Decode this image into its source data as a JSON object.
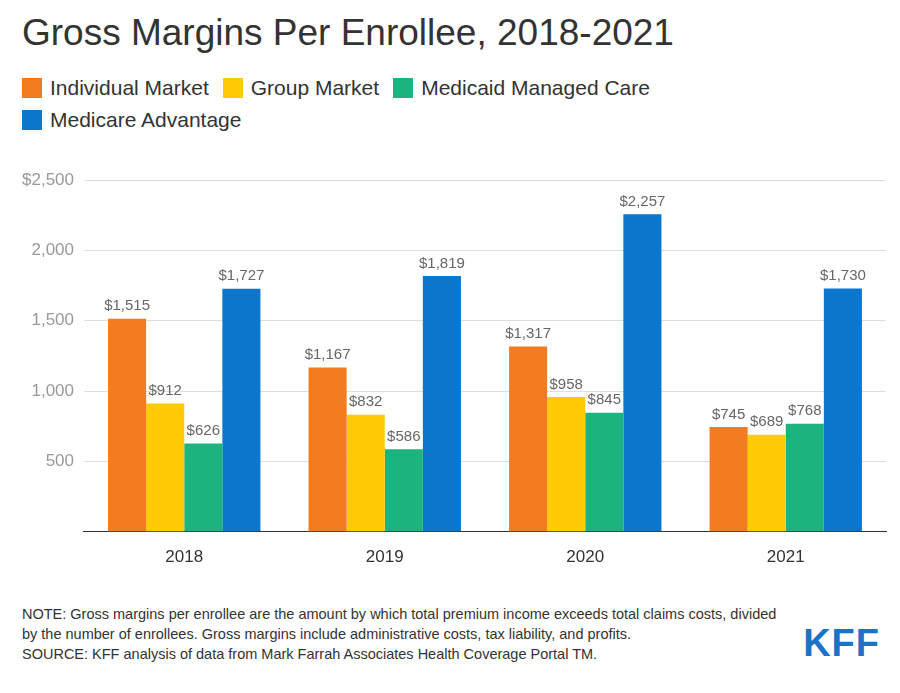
{
  "chart_data": {
    "type": "bar",
    "title": "Gross Margins Per Enrollee, 2018-2021",
    "categories": [
      "2018",
      "2019",
      "2020",
      "2021"
    ],
    "series": [
      {
        "name": "Individual Market",
        "color": "#f47b20",
        "values": [
          1515,
          1167,
          1317,
          745
        ],
        "value_labels": [
          "$1,515",
          "$1,167",
          "$1,317",
          "$745"
        ]
      },
      {
        "name": "Group Market",
        "color": "#ffcb05",
        "values": [
          912,
          832,
          958,
          689
        ],
        "value_labels": [
          "$912",
          "$832",
          "$958",
          "$689"
        ]
      },
      {
        "name": "Medicaid Managed Care",
        "color": "#1db37f",
        "values": [
          626,
          586,
          845,
          768
        ],
        "value_labels": [
          "$626",
          "$586",
          "$845",
          "$768"
        ]
      },
      {
        "name": "Medicare Advantage",
        "color": "#0a77cc",
        "values": [
          1727,
          1819,
          2257,
          1730
        ],
        "value_labels": [
          "$1,727",
          "$1,819",
          "$2,257",
          "$1,730"
        ]
      }
    ],
    "ylim": [
      0,
      2500
    ],
    "yticks": [
      500,
      {
        "value": 1000,
        "label": "1,000"
      },
      {
        "value": 1500,
        "label": "1,500"
      },
      {
        "value": 2000,
        "label": "2,000"
      },
      {
        "value": 2500,
        "label": "$2,500"
      }
    ],
    "grid": true,
    "legend": "top-left",
    "data_labels": true,
    "notes": [
      "NOTE: Gross margins per enrollee are the amount by which total premium income exceeds total claims costs, divided by the number of enrollees. Gross margins include administrative costs, tax liability, and profits.",
      "SOURCE: KFF analysis of data from Mark Farrah Associates Health Coverage Portal TM."
    ],
    "logo": "KFF"
  }
}
